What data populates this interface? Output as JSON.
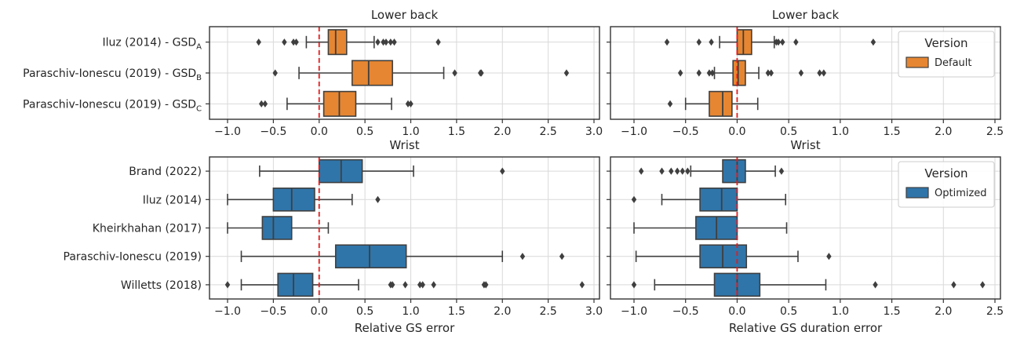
{
  "figure": {
    "xlabel_left": "Relative GS error",
    "xlabel_right": "Relative GS duration error"
  },
  "chart_data": [
    {
      "type": "box",
      "title": "Lower back",
      "xlabel": "",
      "xlim": [
        -1.2,
        3.05
      ],
      "xticks": [
        -1.0,
        -0.5,
        0.0,
        0.5,
        1.0,
        1.5,
        2.0,
        2.5,
        3.0
      ],
      "xtick_labels": [
        "−1.0",
        "−0.5",
        "0.0",
        "0.5",
        "1.0",
        "1.5",
        "2.0",
        "2.5",
        "3.0"
      ],
      "grid": true,
      "reference_line": {
        "x": 0,
        "color": "#e41a1c",
        "style": "dashed"
      },
      "series_color": "#e68632",
      "categories": [
        {
          "label": "Iluz (2014) - GSD",
          "sub": "A"
        },
        {
          "label": "Paraschiv-Ionescu (2019) - GSD",
          "sub": "B"
        },
        {
          "label": "Paraschiv-Ionescu (2019) - GSD",
          "sub": "C"
        }
      ],
      "boxes": [
        {
          "whislo": -0.14,
          "q1": 0.1,
          "med": 0.18,
          "q3": 0.3,
          "whishi": 0.6,
          "fliers": [
            -0.66,
            -0.38,
            -0.28,
            -0.25,
            0.64,
            0.7,
            0.73,
            0.78,
            0.82,
            1.3
          ]
        },
        {
          "whislo": -0.22,
          "q1": 0.36,
          "med": 0.54,
          "q3": 0.8,
          "whishi": 1.36,
          "fliers": [
            -0.48,
            1.48,
            1.76,
            1.77,
            2.7
          ]
        },
        {
          "whislo": -0.35,
          "q1": 0.05,
          "med": 0.22,
          "q3": 0.4,
          "whishi": 0.79,
          "fliers": [
            -0.63,
            -0.59,
            0.97,
            1.0
          ]
        }
      ]
    },
    {
      "type": "box",
      "title": "Lower back",
      "xlabel": "",
      "xlim": [
        -1.2,
        2.55
      ],
      "xticks": [
        -1.0,
        -0.5,
        0.0,
        0.5,
        1.0,
        1.5,
        2.0,
        2.5
      ],
      "xtick_labels": [
        "−1.0",
        "−0.5",
        "0.0",
        "0.5",
        "1.0",
        "1.5",
        "2.0",
        "2.5"
      ],
      "grid": true,
      "reference_line": {
        "x": 0,
        "color": "#e41a1c",
        "style": "dashed"
      },
      "series_color": "#e68632",
      "legend": {
        "title": "Version",
        "entries": [
          "Default"
        ],
        "placement": "upper right"
      },
      "boxes": [
        {
          "whislo": -0.17,
          "q1": 0.0,
          "med": 0.06,
          "q3": 0.14,
          "whishi": 0.36,
          "fliers": [
            -0.68,
            -0.37,
            -0.25,
            0.38,
            0.4,
            0.44,
            0.57,
            1.32
          ]
        },
        {
          "whislo": -0.22,
          "q1": -0.04,
          "med": 0.01,
          "q3": 0.08,
          "whishi": 0.21,
          "fliers": [
            -0.55,
            -0.37,
            -0.27,
            -0.24,
            0.3,
            0.33,
            0.62,
            0.8,
            0.84
          ]
        },
        {
          "whislo": -0.5,
          "q1": -0.27,
          "med": -0.14,
          "q3": -0.05,
          "whishi": 0.2,
          "fliers": [
            -0.65
          ]
        }
      ]
    },
    {
      "type": "box",
      "title": "Wrist",
      "xlabel": "Relative GS error",
      "xlim": [
        -1.2,
        3.05
      ],
      "xticks": [
        -1.0,
        -0.5,
        0.0,
        0.5,
        1.0,
        1.5,
        2.0,
        2.5,
        3.0
      ],
      "xtick_labels": [
        "−1.0",
        "−0.5",
        "0.0",
        "0.5",
        "1.0",
        "1.5",
        "2.0",
        "2.5",
        "3.0"
      ],
      "grid": true,
      "reference_line": {
        "x": 0,
        "color": "#e41a1c",
        "style": "dashed"
      },
      "series_color": "#2f75aa",
      "categories": [
        {
          "label": "Brand (2022)",
          "sub": ""
        },
        {
          "label": "Iluz (2014)",
          "sub": ""
        },
        {
          "label": "Kheirkhahan (2017)",
          "sub": ""
        },
        {
          "label": "Paraschiv-Ionescu (2019)",
          "sub": ""
        },
        {
          "label": "Willetts (2018)",
          "sub": ""
        }
      ],
      "boxes": [
        {
          "whislo": -0.65,
          "q1": 0.0,
          "med": 0.24,
          "q3": 0.47,
          "whishi": 1.03,
          "fliers": [
            2.0
          ]
        },
        {
          "whislo": -1.0,
          "q1": -0.5,
          "med": -0.3,
          "q3": -0.05,
          "whishi": 0.36,
          "fliers": [
            0.64
          ]
        },
        {
          "whislo": -1.0,
          "q1": -0.62,
          "med": -0.5,
          "q3": -0.3,
          "whishi": 0.1,
          "fliers": []
        },
        {
          "whislo": -0.85,
          "q1": 0.18,
          "med": 0.55,
          "q3": 0.95,
          "whishi": 2.0,
          "fliers": [
            2.22,
            2.65
          ]
        },
        {
          "whislo": -0.85,
          "q1": -0.45,
          "med": -0.28,
          "q3": -0.07,
          "whishi": 0.43,
          "fliers": [
            -1.0,
            0.78,
            0.8,
            0.94,
            1.1,
            1.13,
            1.25,
            1.8,
            1.82,
            2.87
          ]
        }
      ]
    },
    {
      "type": "box",
      "title": "Wrist",
      "xlabel": "Relative GS duration error",
      "xlim": [
        -1.2,
        2.55
      ],
      "xticks": [
        -1.0,
        -0.5,
        0.0,
        0.5,
        1.0,
        1.5,
        2.0,
        2.5
      ],
      "xtick_labels": [
        "−1.0",
        "−0.5",
        "0.0",
        "0.5",
        "1.0",
        "1.5",
        "2.0",
        "2.5"
      ],
      "grid": true,
      "reference_line": {
        "x": 0,
        "color": "#e41a1c",
        "style": "dashed"
      },
      "series_color": "#2f75aa",
      "legend": {
        "title": "Version",
        "entries": [
          "Optimized"
        ],
        "placement": "upper right"
      },
      "boxes": [
        {
          "whislo": -0.45,
          "q1": -0.14,
          "med": 0.0,
          "q3": 0.08,
          "whishi": 0.37,
          "fliers": [
            -0.93,
            -0.73,
            -0.64,
            -0.58,
            -0.53,
            -0.48,
            0.43
          ]
        },
        {
          "whislo": -0.73,
          "q1": -0.36,
          "med": -0.15,
          "q3": 0.0,
          "whishi": 0.47,
          "fliers": [
            -1.0
          ]
        },
        {
          "whislo": -1.0,
          "q1": -0.4,
          "med": -0.2,
          "q3": 0.0,
          "whishi": 0.48,
          "fliers": []
        },
        {
          "whislo": -0.98,
          "q1": -0.36,
          "med": -0.14,
          "q3": 0.09,
          "whishi": 0.59,
          "fliers": [
            0.89
          ]
        },
        {
          "whislo": -0.8,
          "q1": -0.22,
          "med": 0.0,
          "q3": 0.22,
          "whishi": 0.86,
          "fliers": [
            -1.0,
            1.34,
            2.1,
            2.38
          ]
        }
      ]
    }
  ]
}
